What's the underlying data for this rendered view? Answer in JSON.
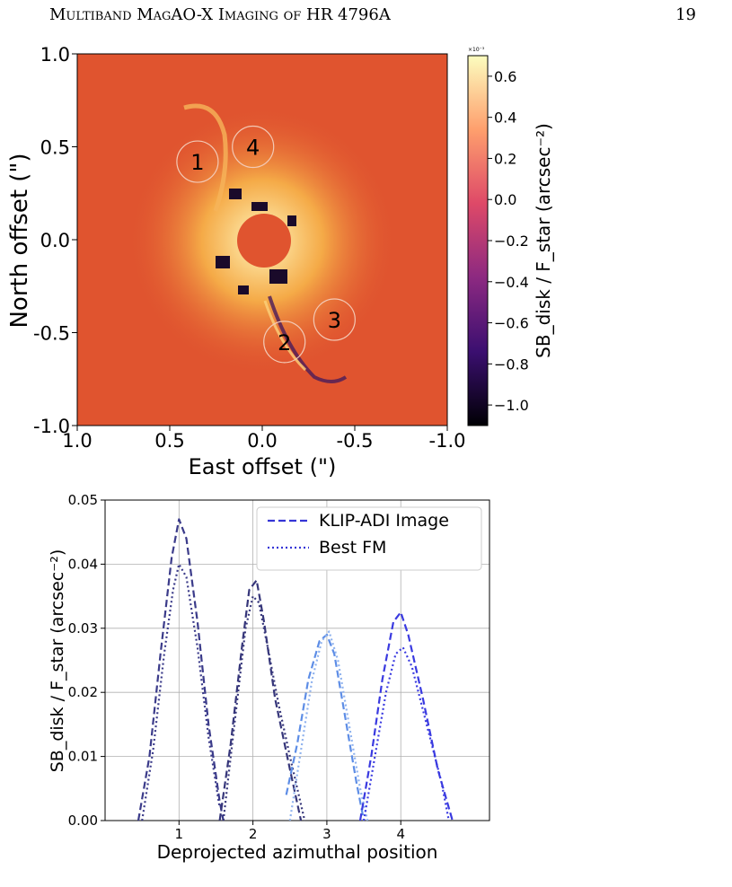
{
  "header": {
    "running_title": "Multiband MagAO-X Imaging of HR 4796A",
    "page_number": "19"
  },
  "image_panel": {
    "xlabel": "East offset (\")",
    "ylabel": "North offset (\")",
    "x_ticks": [
      "1.0",
      "0.5",
      "0.0",
      "-0.5",
      "-1.0"
    ],
    "y_ticks": [
      "1.0",
      "0.5",
      "0.0",
      "-0.5",
      "-1.0"
    ],
    "colorbar_label": "SB_disk / F_star (arcsec⁻²)",
    "colorbar_scale": "×10⁻³",
    "colorbar_ticks": [
      "0.6",
      "0.4",
      "0.2",
      "0.0",
      "−0.2",
      "−0.4",
      "−0.6",
      "−0.8",
      "−1.0"
    ],
    "colormap": [
      "#000004",
      "#3b0f70",
      "#8c2981",
      "#de4968",
      "#fe9f6d",
      "#fcfdbf"
    ],
    "background_color": "#e0542f",
    "regions": [
      {
        "label": "1",
        "x": 0.35,
        "y": 0.42
      },
      {
        "label": "4",
        "x": 0.05,
        "y": 0.5
      },
      {
        "label": "3",
        "x": -0.39,
        "y": -0.43
      },
      {
        "label": "2",
        "x": -0.12,
        "y": -0.55
      }
    ]
  },
  "chart_data": {
    "type": "line",
    "xlabel": "Deprojected azimuthal position",
    "ylabel": "SB_disk / F_star (arcsec⁻²)",
    "xlim": [
      0,
      5.2
    ],
    "ylim": [
      0,
      0.05
    ],
    "x_ticks": [
      "1",
      "2",
      "3",
      "4"
    ],
    "y_ticks": [
      "0.00",
      "0.01",
      "0.02",
      "0.03",
      "0.04",
      "0.05"
    ],
    "grid": true,
    "legend": {
      "position": "top-right",
      "entries": [
        {
          "label": "KLIP-ADI Image",
          "style": "dashed",
          "color": "#3535d6"
        },
        {
          "label": "Best FM",
          "style": "dotted",
          "color": "#3535d6"
        }
      ]
    },
    "series": [
      {
        "group": 1,
        "kind": "image",
        "color": "#3b3b8a",
        "x": [
          0.45,
          0.6,
          0.75,
          0.9,
          1.0,
          1.1,
          1.25,
          1.4,
          1.55,
          1.6
        ],
        "y": [
          0.0,
          0.01,
          0.026,
          0.041,
          0.047,
          0.044,
          0.031,
          0.015,
          0.003,
          0.0
        ]
      },
      {
        "group": 1,
        "kind": "model",
        "color": "#3b3b8a",
        "x": [
          0.5,
          0.65,
          0.8,
          0.92,
          1.0,
          1.1,
          1.25,
          1.4,
          1.55
        ],
        "y": [
          0.0,
          0.011,
          0.026,
          0.036,
          0.04,
          0.038,
          0.027,
          0.013,
          0.002
        ]
      },
      {
        "group": 2,
        "kind": "image",
        "color": "#36367a",
        "x": [
          1.55,
          1.7,
          1.85,
          1.95,
          2.05,
          2.15,
          2.3,
          2.5,
          2.65
        ],
        "y": [
          0.0,
          0.012,
          0.027,
          0.036,
          0.0375,
          0.031,
          0.019,
          0.008,
          0.0
        ]
      },
      {
        "group": 2,
        "kind": "model",
        "color": "#36367a",
        "x": [
          1.6,
          1.75,
          1.9,
          2.0,
          2.08,
          2.2,
          2.35,
          2.5,
          2.7
        ],
        "y": [
          0.0,
          0.015,
          0.03,
          0.035,
          0.034,
          0.027,
          0.018,
          0.01,
          0.0
        ]
      },
      {
        "group": 3,
        "kind": "image",
        "color": "#5d8de6",
        "x": [
          2.45,
          2.6,
          2.75,
          2.9,
          3.0,
          3.1,
          3.25,
          3.4,
          3.5
        ],
        "y": [
          0.004,
          0.012,
          0.022,
          0.028,
          0.029,
          0.026,
          0.016,
          0.006,
          0.0
        ]
      },
      {
        "group": 3,
        "kind": "model",
        "color": "#8fb2ee",
        "x": [
          2.5,
          2.65,
          2.8,
          2.93,
          3.03,
          3.15,
          3.3,
          3.45,
          3.55
        ],
        "y": [
          0.0,
          0.011,
          0.022,
          0.028,
          0.0295,
          0.025,
          0.015,
          0.005,
          0.0
        ]
      },
      {
        "group": 4,
        "kind": "image",
        "color": "#3a3ae0",
        "x": [
          3.45,
          3.6,
          3.75,
          3.9,
          4.0,
          4.1,
          4.3,
          4.5,
          4.7
        ],
        "y": [
          0.0,
          0.01,
          0.022,
          0.031,
          0.0325,
          0.029,
          0.019,
          0.008,
          0.0
        ]
      },
      {
        "group": 4,
        "kind": "model",
        "color": "#3a3ae0",
        "x": [
          3.5,
          3.65,
          3.8,
          3.93,
          4.03,
          4.15,
          4.35,
          4.55,
          4.65
        ],
        "y": [
          0.0,
          0.01,
          0.02,
          0.026,
          0.027,
          0.024,
          0.015,
          0.006,
          0.0
        ]
      }
    ]
  }
}
